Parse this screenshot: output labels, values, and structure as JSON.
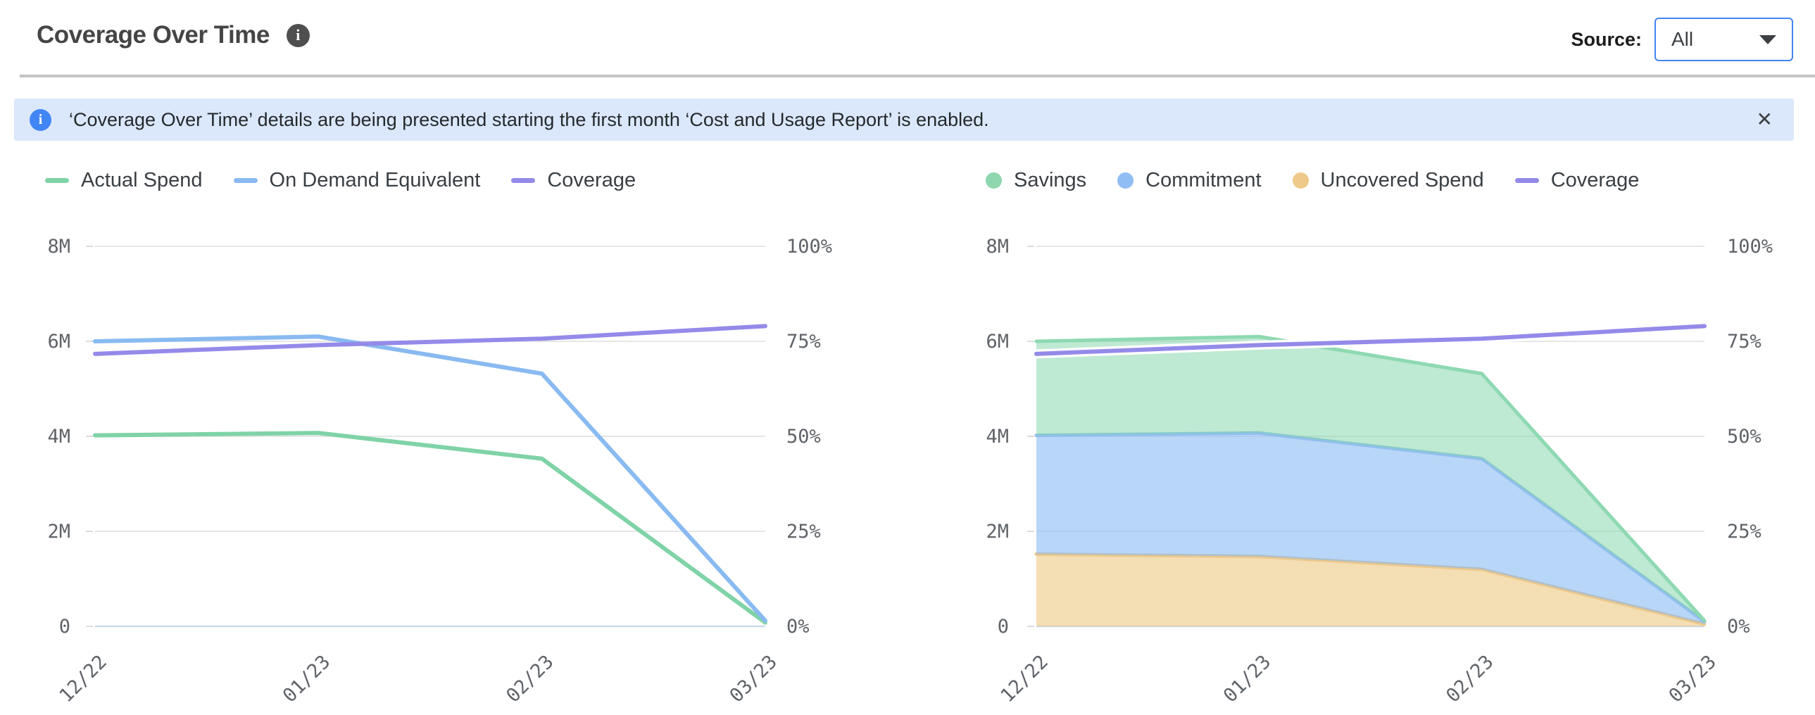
{
  "header": {
    "title": "Coverage Over Time",
    "source_label": "Source:",
    "source_value": "All"
  },
  "banner": {
    "text": "‘Coverage Over Time’ details are being presented starting the first month ‘Cost and Usage Report’ is enabled.",
    "close_symbol": "✕"
  },
  "chart_data": [
    {
      "type": "line",
      "position": "left",
      "x_labels": [
        "12/22",
        "01/23",
        "02/23",
        "03/23"
      ],
      "left_axis": {
        "ticks": [
          "8M",
          "6M",
          "4M",
          "2M",
          "0"
        ],
        "max": 8000000
      },
      "right_axis": {
        "ticks": [
          "100%",
          "75%",
          "50%",
          "25%",
          "0%"
        ],
        "max": 100
      },
      "grid": true,
      "legend": [
        {
          "label": "Actual Spend",
          "marker": "line",
          "color": "#7fd3a6"
        },
        {
          "label": "On Demand Equivalent",
          "marker": "line",
          "color": "#89baf1"
        },
        {
          "label": "Coverage",
          "marker": "line",
          "color": "#938ae9"
        }
      ],
      "series": [
        {
          "name": "Actual Spend",
          "kind": "line",
          "axis": "left",
          "color": "#7fd3a6",
          "values": [
            4020000,
            4070000,
            3530000,
            80000
          ]
        },
        {
          "name": "On Demand Equivalent",
          "kind": "line",
          "axis": "left",
          "color": "#89baf1",
          "values": [
            6000000,
            6100000,
            5320000,
            120000
          ]
        },
        {
          "name": "Coverage",
          "kind": "line",
          "axis": "right",
          "color": "#938ae9",
          "halo": false,
          "values": [
            71.7,
            74.0,
            75.7,
            79.0
          ]
        }
      ]
    },
    {
      "type": "stacked-area",
      "position": "right",
      "x_labels": [
        "12/22",
        "01/23",
        "02/23",
        "03/23"
      ],
      "left_axis": {
        "ticks": [
          "8M",
          "6M",
          "4M",
          "2M",
          "0"
        ],
        "max": 8000000
      },
      "right_axis": {
        "ticks": [
          "100%",
          "75%",
          "50%",
          "25%",
          "0%"
        ],
        "max": 100
      },
      "grid": true,
      "legend": [
        {
          "label": "Savings",
          "marker": "dot",
          "color": "#8fd7ae"
        },
        {
          "label": "Commitment",
          "marker": "dot",
          "color": "#90bdf4"
        },
        {
          "label": "Uncovered Spend",
          "marker": "dot",
          "color": "#efc98a"
        },
        {
          "label": "Coverage",
          "marker": "line",
          "color": "#938ae9"
        }
      ],
      "series": [
        {
          "name": "Uncovered Spend",
          "kind": "area",
          "fill": "#eec985",
          "fill_alpha": 0.62,
          "edge": "#edc88a",
          "values": [
            1520000,
            1470000,
            1200000,
            50000
          ]
        },
        {
          "name": "Commitment",
          "kind": "area",
          "fill": "#89baf1",
          "fill_alpha": 0.6,
          "edge": "#92bef2",
          "values": [
            2500000,
            2600000,
            2330000,
            50000
          ]
        },
        {
          "name": "Savings",
          "kind": "area",
          "fill": "#7ed3a6",
          "fill_alpha": 0.5,
          "edge": "#8dd9b2",
          "values": [
            1980000,
            2030000,
            1790000,
            20000
          ]
        },
        {
          "name": "Coverage",
          "kind": "line",
          "axis": "right",
          "color": "#938ae9",
          "halo": true,
          "values": [
            71.7,
            74.0,
            75.7,
            79.0
          ]
        }
      ]
    }
  ]
}
